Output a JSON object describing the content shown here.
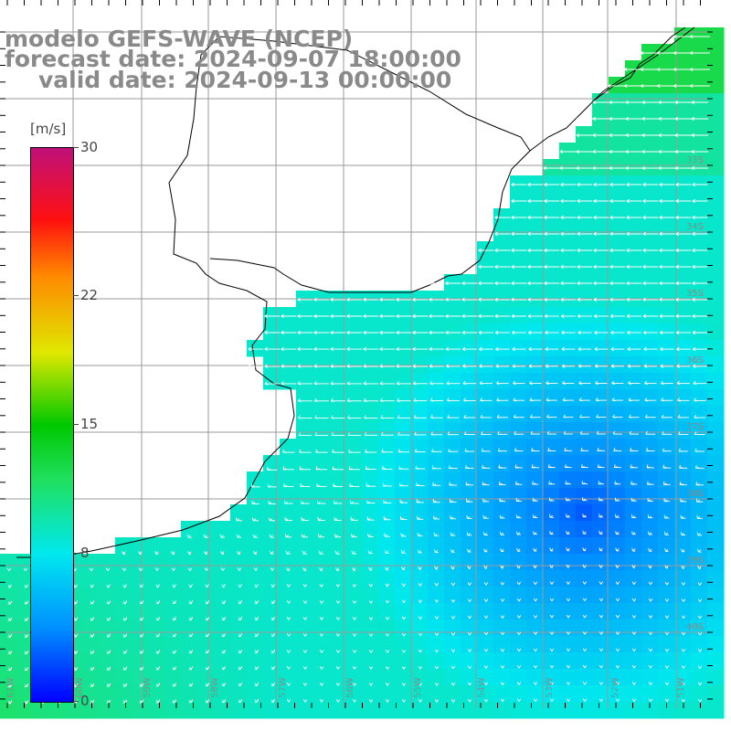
{
  "title": {
    "line1": "modelo GEFS-WAVE (NCEP)",
    "line2": "forecast date: 2024-09-07 18:00:00",
    "line3": "valid date: 2024-09-13 00:00:00"
  },
  "colorbar": {
    "unit": "[m/s]",
    "ticks": [
      "30",
      "22",
      "15",
      "8",
      "0"
    ],
    "tick_values": [
      30,
      22,
      15,
      8,
      0
    ],
    "range": [
      0,
      30
    ],
    "colors": [
      "#0000ff",
      "#0090ff",
      "#00e8ee",
      "#20e060",
      "#00c800",
      "#e0e800",
      "#ff8800",
      "#ff1010",
      "#c0107a"
    ]
  },
  "map": {
    "lat_labels": [
      "33S",
      "34S",
      "35S",
      "36S",
      "37S",
      "38S",
      "39S",
      "40S"
    ],
    "lon_labels": [
      "61W",
      "60W",
      "59W",
      "58W",
      "57W",
      "56W",
      "55W",
      "54W",
      "53W",
      "52W",
      "51W"
    ],
    "land_color": "#ffffff",
    "coast_color": "#000000",
    "grid_color": "#9a9a9a",
    "arrow_color": "#ffffff"
  }
}
